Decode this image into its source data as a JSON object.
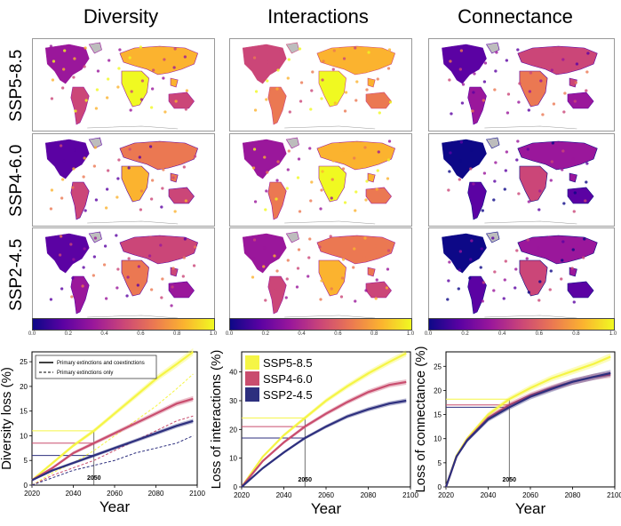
{
  "columns": [
    "Diversity",
    "Interactions",
    "Connectance"
  ],
  "rows": [
    "SSP5-8.5",
    "SSP4-6.0",
    "SSP2-4.5"
  ],
  "colorbar": {
    "ticks": [
      "0.0",
      "0.2",
      "0.4",
      "0.6",
      "0.8",
      "1.0"
    ],
    "colors": [
      "#0d0887",
      "#5b02a3",
      "#9a179b",
      "#cb4678",
      "#eb7852",
      "#fbb32f",
      "#f0f921"
    ]
  },
  "scenario_colors": {
    "SSP5-8.5": "#f5f545",
    "SSP4-6.0": "#c94d6e",
    "SSP2-4.5": "#2d2f7e"
  },
  "marker_year": "2050",
  "chart_data": [
    {
      "type": "line",
      "xlabel": "Year",
      "ylabel": "Diversity loss (%)",
      "xlim": [
        2020,
        2100
      ],
      "ylim": [
        0,
        27
      ],
      "xticks": [
        "2020",
        "2040",
        "2060",
        "2080",
        "2100"
      ],
      "yticks": [
        "0",
        "5",
        "10",
        "15",
        "20",
        "25"
      ],
      "legend_position": "top-left",
      "legend": [
        "Primary extinctions  and coextinctions",
        "Primary extinctions only"
      ],
      "x": [
        2020,
        2030,
        2040,
        2050,
        2060,
        2070,
        2080,
        2090,
        2098
      ],
      "series": [
        {
          "name": "SSP5-8.5",
          "values": [
            1,
            4.5,
            8,
            11,
            14.5,
            18,
            21.5,
            24.5,
            27
          ]
        },
        {
          "name": "SSP4-6.0",
          "values": [
            1,
            3.5,
            6.5,
            8.5,
            10.5,
            12.5,
            14.5,
            16.5,
            17.5
          ]
        },
        {
          "name": "SSP2-4.5",
          "values": [
            1,
            3,
            4.5,
            6,
            7.5,
            9,
            10.5,
            12,
            13
          ]
        }
      ],
      "dashed_series": [
        {
          "name": "SSP5-8.5",
          "values": [
            0,
            2.5,
            4.5,
            7,
            10,
            13,
            16,
            19.5,
            22.5
          ]
        },
        {
          "name": "SSP4-6.0",
          "values": [
            0,
            2,
            3.5,
            5,
            7,
            9,
            11,
            13,
            14
          ]
        },
        {
          "name": "SSP2-4.5",
          "values": [
            0,
            1.5,
            3,
            4,
            5,
            6.5,
            7.5,
            8.5,
            10
          ]
        }
      ],
      "at_2050": {
        "SSP5-8.5": 11,
        "SSP4-6.0": 8.5,
        "SSP2-4.5": 6
      }
    },
    {
      "type": "line",
      "xlabel": "Year",
      "ylabel": "Loss of interactions (%)",
      "xlim": [
        2020,
        2100
      ],
      "ylim": [
        0,
        47
      ],
      "xticks": [
        "2020",
        "2040",
        "2060",
        "2080",
        "2100"
      ],
      "yticks": [
        "0",
        "10",
        "20",
        "30",
        "40"
      ],
      "legend_position": "top-left",
      "legend": [
        "SSP5-8.5",
        "SSP4-6.0",
        "SSP2-4.5"
      ],
      "x": [
        2020,
        2030,
        2040,
        2050,
        2060,
        2070,
        2080,
        2090,
        2098
      ],
      "series": [
        {
          "name": "SSP5-8.5",
          "values": [
            0,
            10.5,
            18,
            24,
            30,
            35,
            39.5,
            43.5,
            46.5
          ]
        },
        {
          "name": "SSP4-6.0",
          "values": [
            0,
            9,
            15.5,
            21,
            25.5,
            29.5,
            33,
            35.5,
            36.5
          ]
        },
        {
          "name": "SSP2-4.5",
          "values": [
            0,
            6.5,
            12,
            17,
            21,
            24.5,
            27,
            29,
            30
          ]
        }
      ],
      "at_2050": {
        "SSP5-8.5": 24,
        "SSP4-6.0": 21,
        "SSP2-4.5": 17
      }
    },
    {
      "type": "line",
      "xlabel": "Year",
      "ylabel": "Loss of connectance (%)",
      "xlim": [
        2020,
        2100
      ],
      "ylim": [
        0,
        28
      ],
      "xticks": [
        "2020",
        "2040",
        "2060",
        "2080",
        "2100"
      ],
      "yticks": [
        "0",
        "5",
        "10",
        "15",
        "20",
        "25"
      ],
      "x": [
        2020,
        2025,
        2030,
        2040,
        2050,
        2060,
        2070,
        2080,
        2090,
        2098
      ],
      "series": [
        {
          "name": "SSP5-8.5",
          "values": [
            0,
            6.5,
            10,
            15,
            18.2,
            20.5,
            22.5,
            24,
            25.5,
            27
          ]
        },
        {
          "name": "SSP4-6.0",
          "values": [
            0,
            6.3,
            9.7,
            14.3,
            17,
            19,
            20.5,
            21.8,
            22.8,
            23.3
          ]
        },
        {
          "name": "SSP2-4.5",
          "values": [
            0,
            6.3,
            9.6,
            14,
            16.5,
            18.7,
            20.3,
            21.8,
            22.8,
            23.6
          ]
        }
      ],
      "at_2050": {
        "SSP5-8.5": 18.2,
        "SSP4-6.0": 17,
        "SSP2-4.5": 16.5
      }
    }
  ]
}
